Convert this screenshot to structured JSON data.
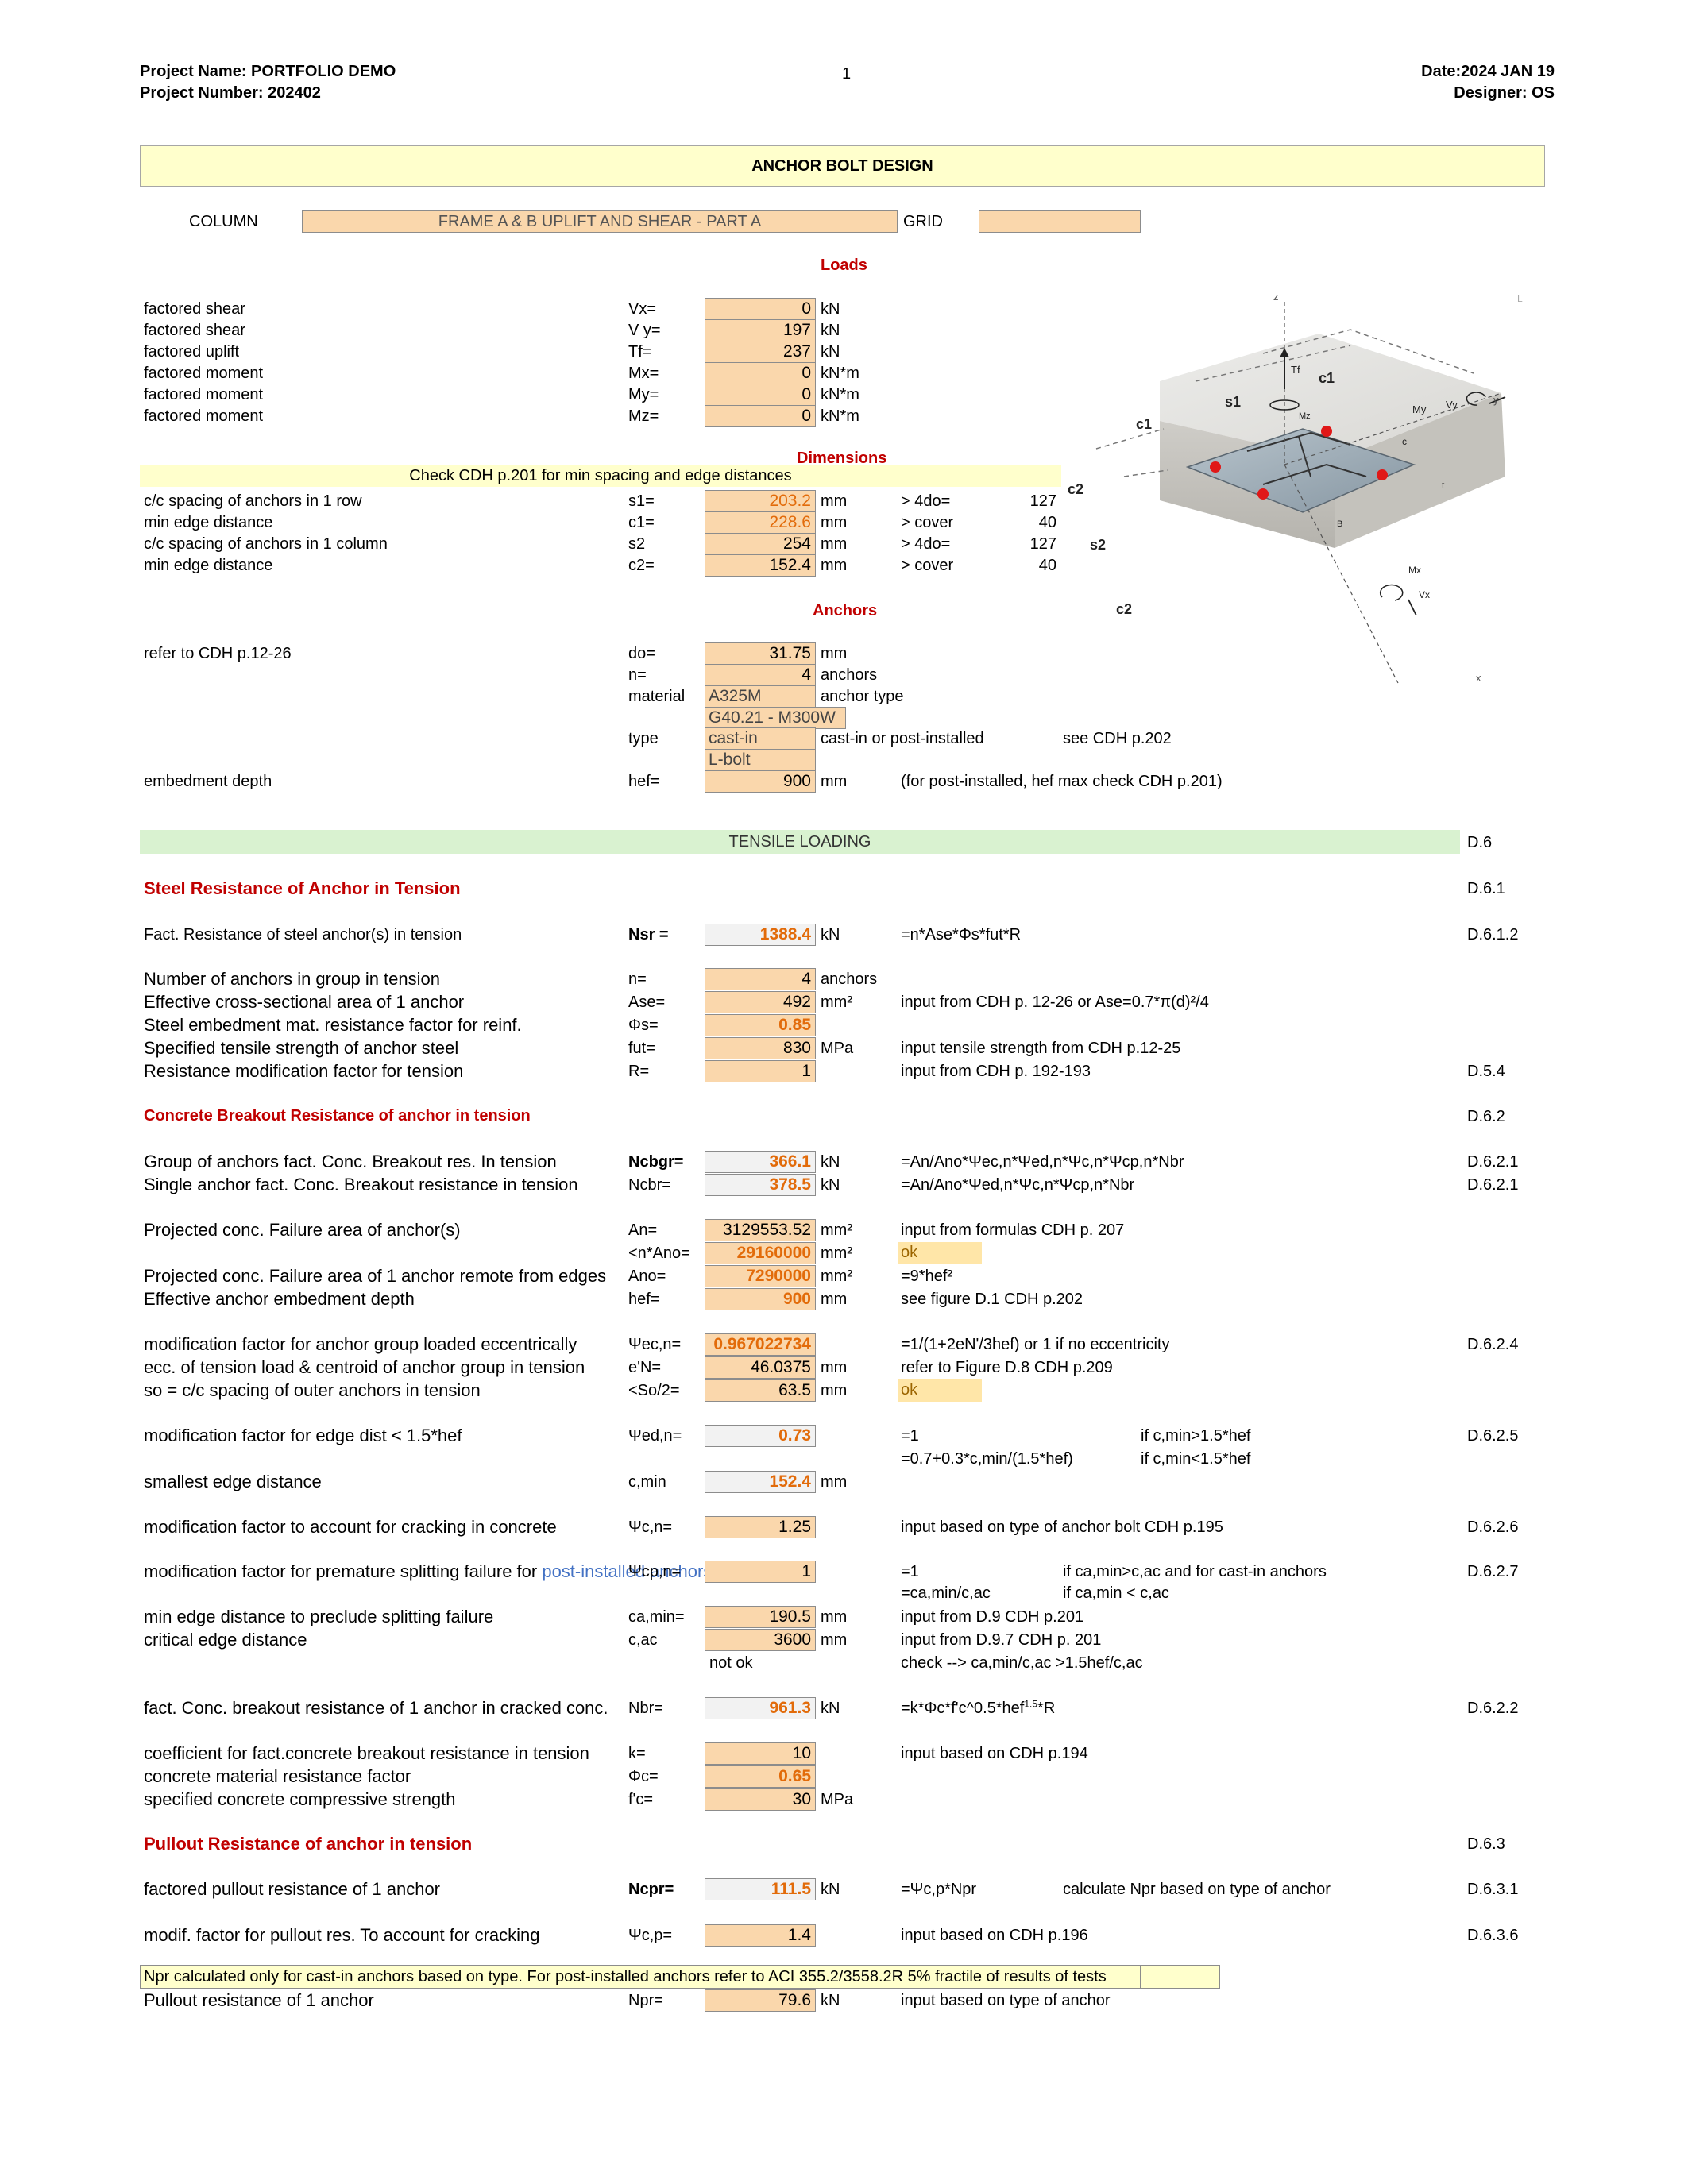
{
  "header": {
    "project_name": "Project Name: PORTFOLIO DEMO",
    "project_number": "Project Number: 202402",
    "page": "1",
    "date": "Date:2024 JAN 19",
    "designer": "Designer: OS"
  },
  "title": "ANCHOR BOLT DESIGN",
  "column_row": {
    "column_label": "COLUMN",
    "column_value": "FRAME A & B UPLIFT AND SHEAR  - PART A",
    "grid_label": "GRID",
    "grid_value": ""
  },
  "loads": {
    "heading": "Loads",
    "rows": [
      {
        "label": "factored shear",
        "sym": "Vx=",
        "value": "0",
        "unit": "kN"
      },
      {
        "label": "factored shear",
        "sym": "V y=",
        "value": "197",
        "unit": "kN"
      },
      {
        "label": "factored uplift",
        "sym": "Tf=",
        "value": "237",
        "unit": "kN"
      },
      {
        "label": "factored moment",
        "sym": "Mx=",
        "value": "0",
        "unit": "kN*m"
      },
      {
        "label": "factored moment",
        "sym": "My=",
        "value": "0",
        "unit": "kN*m"
      },
      {
        "label": "factored moment",
        "sym": "Mz=",
        "value": "0",
        "unit": "kN*m"
      }
    ]
  },
  "dimensions": {
    "heading": "Dimensions",
    "note": "Check CDH p.201 for min spacing and edge distances",
    "rows": [
      {
        "label": "c/c spacing of anchors in 1 row",
        "sym": "s1=",
        "value": "203.2",
        "unit": "mm",
        "check": "> 4do=",
        "check_val": "127"
      },
      {
        "label": "min edge distance",
        "sym": "c1=",
        "value": "228.6",
        "unit": "mm",
        "check": "> cover",
        "check_val": "40"
      },
      {
        "label": "c/c spacing of anchors in 1 column",
        "sym": "s2",
        "value": "254",
        "unit": "mm",
        "check": "> 4do=",
        "check_val": "127"
      },
      {
        "label": "min edge distance",
        "sym": "c2=",
        "value": "152.4",
        "unit": "mm",
        "check": "> cover",
        "check_val": "40"
      }
    ]
  },
  "anchors": {
    "heading": "Anchors",
    "refer": "refer to CDH p.12-26",
    "do_sym": "do=",
    "do_val": "31.75",
    "do_unit": "mm",
    "n_sym": "n=",
    "n_val": "4",
    "n_unit": "anchors",
    "material_sym": "material",
    "material_val": "A325M",
    "material_desc": "anchor type",
    "material_val2": "G40.21 - M300W",
    "type_sym": "type",
    "type_val": "cast-in",
    "type_desc": "cast-in or post-installed",
    "type_ref": "see CDH p.202",
    "type_val2": "L-bolt",
    "hef_label": "embedment depth",
    "hef_sym": "hef=",
    "hef_val": "900",
    "hef_unit": "mm",
    "hef_note": "(for post-installed, hef max check CDH p.201)"
  },
  "figure": {
    "labels": {
      "z": "z",
      "tf": "Tf",
      "c1a": "c1",
      "s1": "s1",
      "mz": "Mz",
      "my": "My",
      "vy": "Vy",
      "y": "y",
      "c1b": "c1",
      "c": "c",
      "c2a": "c2",
      "t": "t",
      "b": "B",
      "s2": "s2",
      "mx": "Mx",
      "vx": "Vx",
      "c2b": "c2",
      "x": "x",
      "l": "L"
    }
  },
  "tensile": {
    "band": "TENSILE LOADING",
    "band_ref": "D.6",
    "steel_heading": "Steel Resistance of Anchor in Tension",
    "steel_ref": "D.6.1",
    "nsr": {
      "label": "Fact. Resistance of steel anchor(s) in tension",
      "sym": "Nsr =",
      "value": "1388.4",
      "unit": "kN",
      "formula": "=n*Ase*Φs*fut*R",
      "ref": "D.6.1.2"
    },
    "steel_rows": [
      {
        "label": "Number of anchors in group in tension",
        "sym": "n=",
        "value": "4",
        "unit": "anchors",
        "note": "",
        "ref": ""
      },
      {
        "label": "Effective cross-sectional area of 1 anchor",
        "sym": "Ase=",
        "value": "492",
        "unit": "mm²",
        "note": "input from CDH p. 12-26 or Ase=0.7*π(d)²/4",
        "ref": ""
      },
      {
        "label": "Steel embedment mat. resistance factor for reinf.",
        "sym": "Φs=",
        "value": "0.85",
        "unit": "",
        "note": "",
        "ref": ""
      },
      {
        "label": "Specified tensile strength of anchor steel",
        "sym": "fut=",
        "value": "830",
        "unit": "MPa",
        "note": "input tensile strength from CDH p.12-25",
        "ref": ""
      },
      {
        "label": "Resistance modification factor for tension",
        "sym": "R=",
        "value": "1",
        "unit": "",
        "note": "input from CDH p. 192-193",
        "ref": "D.5.4"
      }
    ],
    "concrete_heading": "Concrete Breakout Resistance of anchor in tension",
    "concrete_ref": "D.6.2",
    "ncbgr": {
      "label": "Group of anchors fact. Conc. Breakout res. In tension",
      "sym": "Ncbgr=",
      "value": "366.1",
      "unit": "kN",
      "formula": "=An/Ano*Ψec,n*Ψed,n*Ψc,n*Ψcp,n*Nbr",
      "ref": "D.6.2.1"
    },
    "ncbr": {
      "label": "Single anchor fact. Conc. Breakout resistance in tension",
      "sym": "Ncbr=",
      "value": "378.5",
      "unit": "kN",
      "formula": "=An/Ano*Ψed,n*Ψc,n*Ψcp,n*Nbr",
      "ref": "D.6.2.1"
    },
    "an": {
      "label": "Projected conc. Failure area of anchor(s)",
      "sym": "An=",
      "value": "3129553.52",
      "unit": "mm²",
      "note": "input from formulas CDH p. 207"
    },
    "nano": {
      "sym": "<n*Ano=",
      "value": "29160000",
      "unit": "mm²",
      "note": "ok"
    },
    "ano": {
      "label": "Projected conc. Failure area of 1 anchor remote from edges",
      "sym": "Ano=",
      "value": "7290000",
      "unit": "mm²",
      "note": "=9*hef²"
    },
    "hef": {
      "label": "Effective anchor embedment depth",
      "sym": "hef=",
      "value": "900",
      "unit": "mm",
      "note": "see figure D.1 CDH p.202"
    },
    "psiec": {
      "label": "modification factor for anchor group loaded eccentrically",
      "sym": "Ψec,n=",
      "value": "0.967022734",
      "unit": "",
      "note": "=1/(1+2eN'/3hef) or 1 if no eccentricity",
      "ref": "D.6.2.4"
    },
    "en": {
      "label": "ecc. of tension load & centroid of anchor group in tension",
      "sym": "e'N=",
      "value": "46.0375",
      "unit": "mm",
      "note": "refer to Figure D.8 CDH p.209"
    },
    "so": {
      "label": "so = c/c spacing of outer anchors in tension",
      "sym": "<So/2=",
      "value": "63.5",
      "unit": "mm",
      "note": "ok"
    },
    "psied": {
      "label": "modification factor for edge dist < 1.5*hef",
      "sym": "Ψed,n=",
      "value": "0.73",
      "note1": "=1",
      "cond1": "if c,min>1.5*hef",
      "note2": "=0.7+0.3*c,min/(1.5*hef)",
      "cond2": "if c,min<1.5*hef",
      "ref": "D.6.2.5"
    },
    "cmin": {
      "label": "smallest edge distance",
      "sym": "c,min",
      "value": "152.4",
      "unit": "mm"
    },
    "psic": {
      "label": "modification factor to account for cracking in concrete",
      "sym": "Ψc,n=",
      "value": "1.25",
      "note": "input based on type of anchor bolt CDH p.195",
      "ref": "D.6.2.6"
    },
    "psicp": {
      "label": "modification factor for premature splitting failure for ",
      "label_link": "post-installed anchors",
      "sym": "Ψcp,n=",
      "value": "1",
      "note1": "=1",
      "cond1": "if ca,min>c,ac and for cast-in anchors",
      "note2": "=ca,min/c,ac",
      "cond2": "if ca,min < c,ac",
      "ref": "D.6.2.7"
    },
    "camin": {
      "label": "min edge distance to preclude splitting failure",
      "sym": "ca,min=",
      "value": "190.5",
      "unit": "mm",
      "note": "input from D.9 CDH p.201"
    },
    "cac": {
      "label": "critical edge distance",
      "sym": "c,ac",
      "value": "3600",
      "unit": "mm",
      "note": "input from  D.9.7 CDH p. 201"
    },
    "notok": {
      "text": "not ok",
      "note": "check --> ca,min/c,ac >1.5hef/c,ac"
    },
    "nbr": {
      "label": "fact. Conc. breakout resistance of 1 anchor in cracked conc.",
      "sym": "Nbr=",
      "value": "961.3",
      "unit": "kN",
      "formula": "=k*Φc*f'c^0.5*hef",
      "formula_sup": "1.5",
      "formula_end": "*R",
      "ref": "D.6.2.2"
    },
    "k": {
      "label": "coefficient for fact.concrete breakout resistance in tension",
      "sym": "k=",
      "value": "10",
      "note": "input based on CDH p.194"
    },
    "phic": {
      "label": "concrete material resistance factor",
      "sym": "Φc=",
      "value": "0.65"
    },
    "fc": {
      "label": "specified concrete compressive strength",
      "sym": "f'c=",
      "value": "30",
      "unit": "MPa"
    },
    "pullout_heading": "Pullout Resistance of anchor in tension",
    "pullout_ref": "D.6.3",
    "ncpr": {
      "label": "factored pullout resistance of 1 anchor",
      "sym": "Ncpr=",
      "value": "111.5",
      "unit": "kN",
      "formula": "=Ψc,p*Npr",
      "cond": "calculate Npr based on type of anchor",
      "ref": "D.6.3.1"
    },
    "psicp2": {
      "label": "modif. factor for pullout res. To account for cracking",
      "sym": "Ψc,p=",
      "value": "1.4",
      "note": "input based on CDH p.196",
      "ref": "D.6.3.6"
    },
    "npr_note": "Npr calculated only for cast-in anchors based on type. For post-installed anchors refer to ACI 355.2/3558.2R 5% fractile of results of tests",
    "npr": {
      "label": "Pullout resistance of 1 anchor",
      "sym": "Npr=",
      "value": "79.6",
      "unit": "kN",
      "note": "input based on type of anchor"
    }
  },
  "colors": {
    "peach": "#fad7ac",
    "yellow": "#ffffcc",
    "green": "#d9f2d0",
    "red": "#c00000",
    "orange": "#e26b0a"
  }
}
